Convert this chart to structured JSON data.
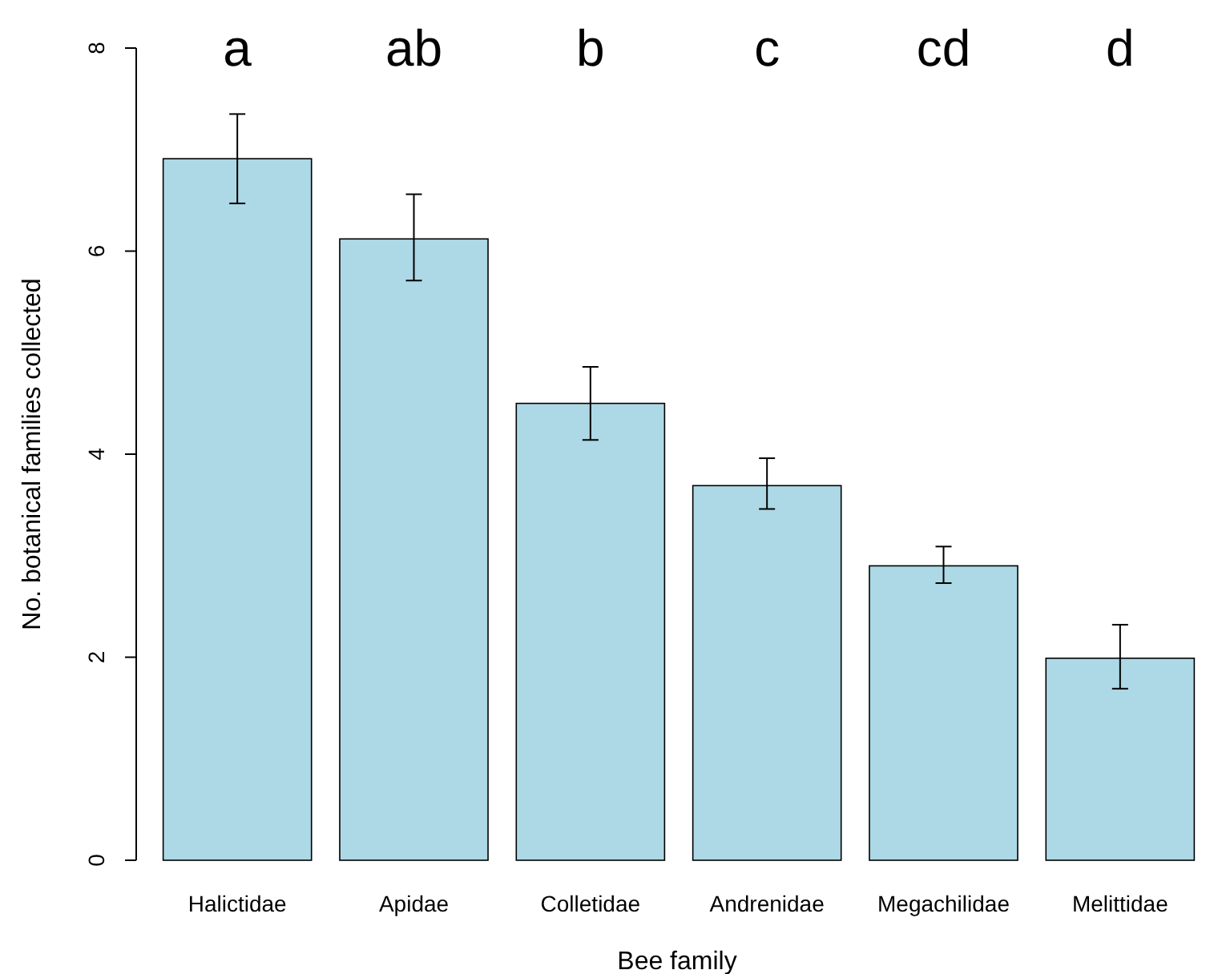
{
  "chart_data": {
    "type": "bar",
    "xlabel": "Bee family",
    "ylabel": "No. botanical families collected",
    "categories": [
      "Halictidae",
      "Apidae",
      "Colletidae",
      "Andrenidae",
      "Megachilidae",
      "Melittidae"
    ],
    "values": [
      6.91,
      6.12,
      4.5,
      3.69,
      2.9,
      1.99
    ],
    "errors": [
      [
        6.47,
        7.35
      ],
      [
        5.71,
        6.56
      ],
      [
        4.14,
        4.86
      ],
      [
        3.46,
        3.96
      ],
      [
        2.73,
        3.09
      ],
      [
        1.69,
        2.32
      ]
    ],
    "color": "#add8e6",
    "ylim": [
      0,
      8
    ],
    "yticks": [
      0,
      2,
      4,
      6,
      8
    ],
    "grid": false,
    "annotations": [
      "a",
      "ab",
      "b",
      "c",
      "cd",
      "d"
    ]
  }
}
